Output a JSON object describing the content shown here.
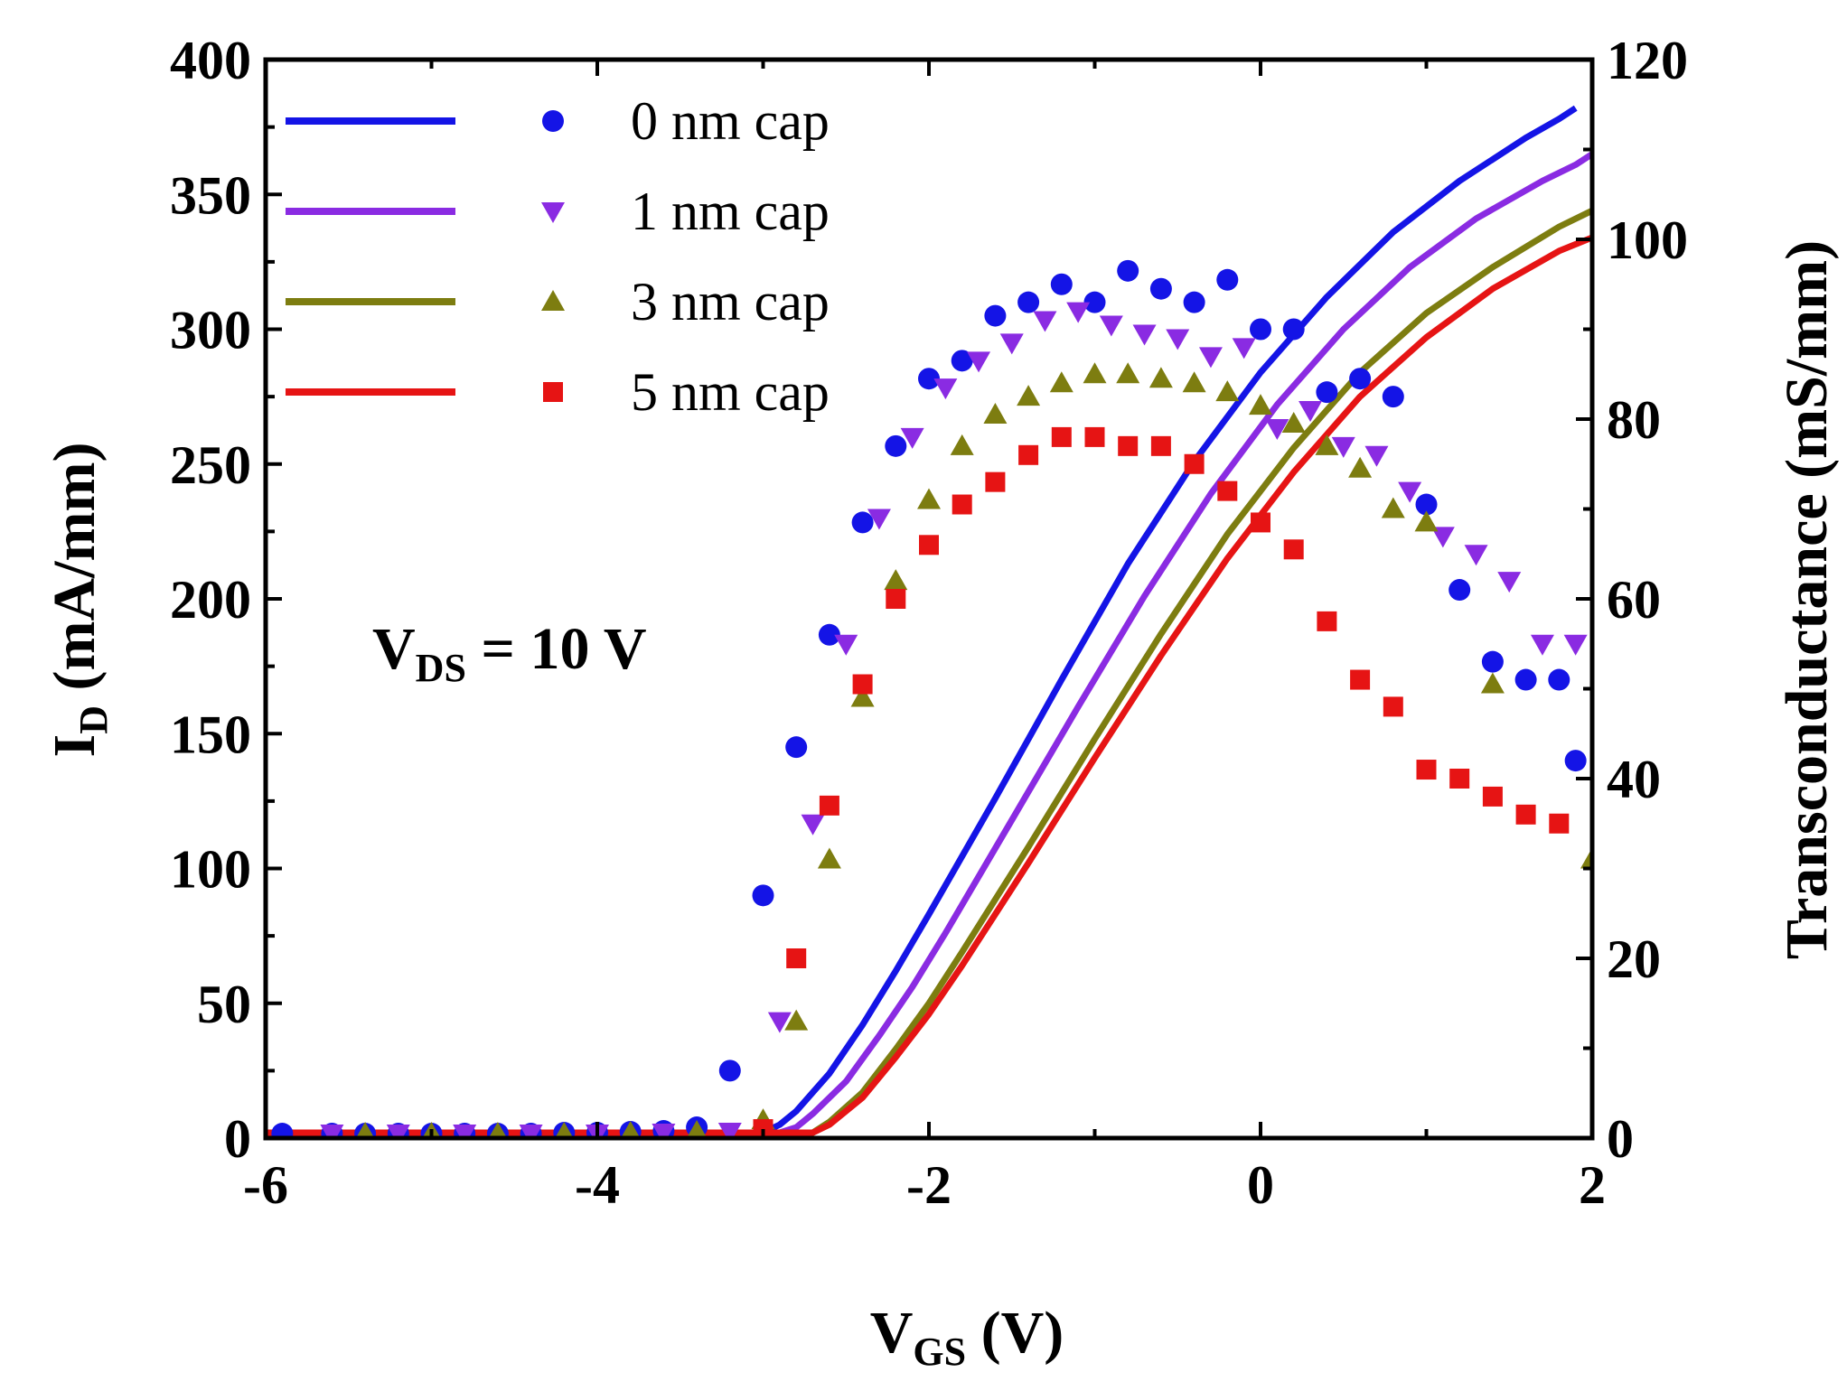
{
  "chart_data": {
    "type": "line",
    "title": "",
    "xlabel": {
      "main": "V",
      "sub": "GS",
      "rest": " (V)"
    },
    "ylabel_left": {
      "main": "I",
      "sub": "D",
      "rest": " (mA/mm)"
    },
    "ylabel_right": "Transconductance (mS/mm)",
    "xlim": [
      -6,
      2
    ],
    "ylim_left": [
      0,
      400
    ],
    "ylim_right": [
      0,
      120
    ],
    "xticks": [
      -6,
      -4,
      -2,
      0,
      2
    ],
    "yticks_left": [
      0,
      50,
      100,
      150,
      200,
      250,
      300,
      350,
      400
    ],
    "yticks_right": [
      0,
      20,
      40,
      60,
      80,
      100,
      120
    ],
    "annotation": {
      "main": "V",
      "sub": "DS",
      "rest": " = 10 V"
    },
    "legend_position": "top-left",
    "series": [
      {
        "name": "0 nm cap",
        "color": "#1414e6",
        "marker": "circle",
        "id_curve": {
          "x": [
            -6,
            -3,
            -2.9,
            -2.8,
            -2.6,
            -2.4,
            -2.2,
            -2.0,
            -1.6,
            -1.2,
            -0.8,
            -0.4,
            0,
            0.4,
            0.8,
            1.2,
            1.6,
            1.8,
            1.9
          ],
          "y": [
            2,
            2,
            5,
            10,
            24,
            42,
            62,
            83,
            126,
            170,
            213,
            251,
            284,
            312,
            336,
            355,
            371,
            378,
            382
          ]
        },
        "gm_points": {
          "x": [
            -5.9,
            -5.6,
            -5.4,
            -5.2,
            -5.0,
            -4.8,
            -4.6,
            -4.4,
            -4.2,
            -4.0,
            -3.8,
            -3.6,
            -3.4,
            -3.2,
            -3.0,
            -2.8,
            -2.6,
            -2.4,
            -2.2,
            -2.0,
            -1.8,
            -1.6,
            -1.4,
            -1.2,
            -1.0,
            -0.8,
            -0.6,
            -0.4,
            -0.2,
            0.0,
            0.2,
            0.4,
            0.6,
            0.8,
            1.0,
            1.2,
            1.4,
            1.6,
            1.8,
            1.9
          ],
          "y": [
            0.5,
            0.5,
            0.5,
            0.5,
            0.5,
            0.5,
            0.5,
            0.5,
            0.6,
            0.6,
            0.7,
            0.8,
            1.2,
            7.5,
            27,
            43.5,
            56,
            68.5,
            77,
            84.5,
            86.5,
            91.5,
            93,
            95,
            93,
            96.5,
            94.5,
            93,
            95.5,
            90,
            90,
            83,
            84.5,
            82.5,
            70.5,
            61,
            53,
            51,
            51,
            42
          ]
        }
      },
      {
        "name": "1 nm cap",
        "color": "#8a2be2",
        "marker": "triangle-down",
        "id_curve": {
          "x": [
            -6,
            -2.9,
            -2.8,
            -2.7,
            -2.5,
            -2.3,
            -2.1,
            -1.9,
            -1.5,
            -1.1,
            -0.7,
            -0.3,
            0.1,
            0.5,
            0.9,
            1.3,
            1.7,
            1.9,
            2.0
          ],
          "y": [
            2,
            2,
            4,
            9,
            21,
            38,
            56,
            76,
            118,
            160,
            201,
            239,
            272,
            300,
            323,
            341,
            355,
            361,
            365
          ]
        },
        "gm_points": {
          "x": [
            -5.6,
            -5.2,
            -4.8,
            -4.4,
            -4.0,
            -3.6,
            -3.2,
            -2.9,
            -2.7,
            -2.5,
            -2.3,
            -2.1,
            -1.9,
            -1.7,
            -1.5,
            -1.3,
            -1.1,
            -0.9,
            -0.7,
            -0.5,
            -0.3,
            -0.1,
            0.1,
            0.3,
            0.5,
            0.7,
            0.9,
            1.1,
            1.3,
            1.5,
            1.7,
            1.9
          ],
          "y": [
            0.5,
            0.5,
            0.5,
            0.5,
            0.5,
            0.6,
            0.7,
            13,
            35,
            55,
            69,
            78,
            83.5,
            86.5,
            88.5,
            91,
            92,
            90.5,
            89.5,
            89,
            87,
            88,
            79,
            81,
            77,
            76,
            72,
            67,
            65,
            62,
            55,
            55
          ]
        }
      },
      {
        "name": "3 nm cap",
        "color": "#7d7d10",
        "marker": "triangle-up",
        "id_curve": {
          "x": [
            -6,
            -2.7,
            -2.6,
            -2.4,
            -2.2,
            -2.0,
            -1.8,
            -1.4,
            -1.0,
            -0.6,
            -0.2,
            0.2,
            0.6,
            1.0,
            1.4,
            1.8,
            2.0
          ],
          "y": [
            2,
            2,
            6,
            17,
            33,
            50,
            69,
            108,
            148,
            187,
            224,
            256,
            284,
            306,
            323,
            338,
            344
          ]
        },
        "gm_points": {
          "x": [
            -5.4,
            -5.0,
            -4.6,
            -4.2,
            -3.8,
            -3.4,
            -3.0,
            -2.8,
            -2.6,
            -2.4,
            -2.2,
            -2.0,
            -1.8,
            -1.6,
            -1.4,
            -1.2,
            -1.0,
            -0.8,
            -0.6,
            -0.4,
            -0.2,
            0.0,
            0.2,
            0.4,
            0.6,
            0.8,
            1.0,
            1.4,
            2.0
          ],
          "y": [
            0.5,
            0.5,
            0.5,
            0.5,
            0.6,
            0.7,
            2,
            13,
            31,
            49,
            62,
            71,
            77,
            80.5,
            82.5,
            84,
            85,
            85,
            84.5,
            84,
            83,
            81.5,
            79.5,
            77,
            74.5,
            70,
            68.5,
            50.5,
            31
          ]
        }
      },
      {
        "name": "5 nm cap",
        "color": "#e61414",
        "marker": "square",
        "id_curve": {
          "x": [
            -6,
            -2.7,
            -2.6,
            -2.4,
            -2.2,
            -2.0,
            -1.8,
            -1.4,
            -1.0,
            -0.6,
            -0.2,
            0.2,
            0.6,
            1.0,
            1.4,
            1.8,
            2.0
          ],
          "y": [
            2,
            2,
            5,
            15,
            30,
            46,
            64,
            102,
            141,
            179,
            215,
            247,
            275,
            297,
            315,
            329,
            334
          ]
        },
        "gm_points": {
          "x": [
            -3.0,
            -2.8,
            -2.6,
            -2.4,
            -2.2,
            -2.0,
            -1.8,
            -1.6,
            -1.4,
            -1.2,
            -1.0,
            -0.8,
            -0.6,
            -0.4,
            -0.2,
            0.0,
            0.2,
            0.4,
            0.6,
            0.8,
            1.0,
            1.2,
            1.4,
            1.6,
            1.8
          ],
          "y": [
            1,
            20,
            37,
            50.5,
            60,
            66,
            70.5,
            73,
            76,
            78,
            78,
            77,
            77,
            75,
            72,
            68.5,
            65.5,
            57.5,
            51,
            48,
            41,
            40,
            38,
            36,
            35
          ]
        }
      }
    ]
  }
}
